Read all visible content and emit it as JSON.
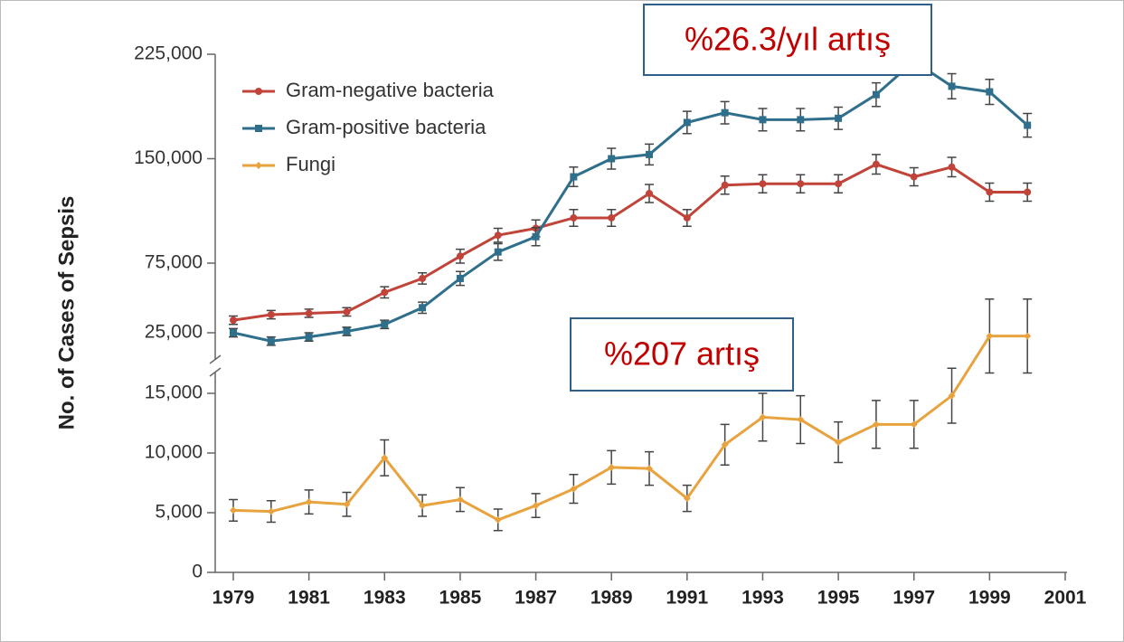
{
  "chart_data": {
    "type": "line",
    "y_label": "No. of Cases of Sepsis",
    "x": [
      1979,
      1980,
      1981,
      1982,
      1983,
      1984,
      1985,
      1986,
      1987,
      1988,
      1989,
      1990,
      1991,
      1992,
      1993,
      1994,
      1995,
      1996,
      1997,
      1998,
      1999,
      2000
    ],
    "xlim": [
      1978.5,
      2001
    ],
    "xticks": [
      1979,
      1981,
      1983,
      1985,
      1987,
      1989,
      1991,
      1993,
      1995,
      1997,
      1999,
      2001
    ],
    "ylim": [
      0,
      20000
    ],
    "yticks": [
      0,
      {
        "value": 5000,
        "label": "5,000"
      },
      {
        "value": 10000,
        "label": "10,000"
      },
      {
        "value": 15000,
        "label": "15,000"
      }
    ],
    "y2lim": [
      25000,
      225000
    ],
    "y2ticks": [
      {
        "value": 25000,
        "label": "25,000"
      },
      {
        "value": 75000,
        "label": "75,000"
      },
      {
        "value": 150000,
        "label": "150,000"
      },
      {
        "value": 225000,
        "label": "225,000"
      }
    ],
    "legend": "upper left",
    "series": [
      {
        "name": "Gram-negative bacteria",
        "color": "#c0443a",
        "axis": "y2",
        "marker": "circle",
        "values": [
          34000,
          38000,
          39000,
          40000,
          54000,
          64000,
          80000,
          95000,
          100000,
          107500,
          107500,
          125000,
          107500,
          131000,
          132000,
          132000,
          132000,
          146000,
          137000,
          144000,
          126000,
          126000
        ],
        "errors": [
          3000,
          3000,
          3000,
          3000,
          4000,
          4000,
          5000,
          5000,
          6000,
          6000,
          6000,
          6500,
          6000,
          6500,
          6500,
          6500,
          6500,
          7000,
          6500,
          7000,
          6500,
          6500
        ]
      },
      {
        "name": "Gram-positive bacteria",
        "color": "#2f6f8c",
        "axis": "y2",
        "marker": "square",
        "values": [
          25000,
          19000,
          22000,
          26000,
          31000,
          43000,
          64000,
          83000,
          94000,
          137000,
          150000,
          153000,
          176000,
          183000,
          178000,
          178000,
          179000,
          196000,
          220000,
          202000,
          198000,
          174000
        ],
        "errors": [
          3000,
          3000,
          3000,
          3000,
          3000,
          4000,
          5000,
          6000,
          6500,
          7000,
          7500,
          7500,
          8000,
          8000,
          8000,
          8000,
          8000,
          8500,
          9000,
          9000,
          9000,
          8500
        ]
      },
      {
        "name": "Fungi",
        "color": "#e8a23e",
        "marker": "diamond",
        "values": [
          5200,
          5100,
          5900,
          5700,
          9600,
          5600,
          6100,
          4400,
          5600,
          7000,
          8800,
          8700,
          6200,
          10700,
          13000,
          12800,
          10900,
          12400,
          12400,
          14800,
          19800,
          19800
        ],
        "errors": [
          900,
          900,
          1000,
          1000,
          1500,
          900,
          1000,
          900,
          1000,
          1200,
          1400,
          1400,
          1100,
          1700,
          2000,
          2000,
          1700,
          2000,
          2000,
          2300,
          3100,
          3100
        ]
      }
    ],
    "annotations": [
      {
        "text": "%26.3/yıl artış"
      },
      {
        "text": "%207 artış"
      }
    ]
  }
}
